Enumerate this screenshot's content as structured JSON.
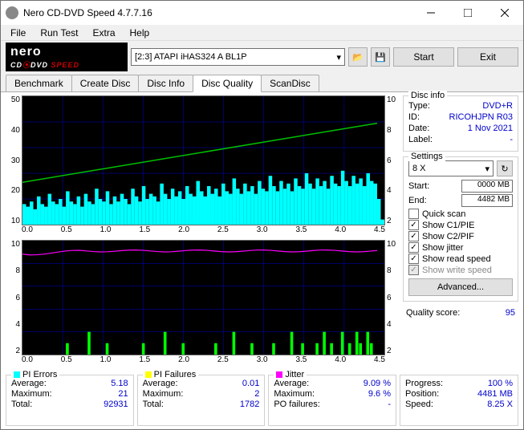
{
  "window": {
    "title": "Nero CD-DVD Speed 4.7.7.16"
  },
  "menu": {
    "file": "File",
    "run": "Run Test",
    "extra": "Extra",
    "help": "Help"
  },
  "toolbar": {
    "drive": "[2:3]   ATAPI iHAS324   A BL1P",
    "start": "Start",
    "exit": "Exit"
  },
  "tabs": {
    "benchmark": "Benchmark",
    "create": "Create Disc",
    "info": "Disc Info",
    "quality": "Disc Quality",
    "scan": "ScanDisc"
  },
  "disc_info": {
    "title": "Disc info",
    "type_lbl": "Type:",
    "type_val": "DVD+R",
    "id_lbl": "ID:",
    "id_val": "RICOHJPN R03",
    "date_lbl": "Date:",
    "date_val": "1 Nov 2021",
    "label_lbl": "Label:",
    "label_val": "-"
  },
  "settings": {
    "title": "Settings",
    "speed": "8 X",
    "start_lbl": "Start:",
    "start_val": "0000 MB",
    "end_lbl": "End:",
    "end_val": "4482 MB",
    "quick": "Quick scan",
    "c1": "Show C1/PIE",
    "c2": "Show C2/PIF",
    "jitter": "Show jitter",
    "read": "Show read speed",
    "write": "Show write speed",
    "advanced": "Advanced..."
  },
  "checks": {
    "quick": false,
    "c1": true,
    "c2": true,
    "jitter": true,
    "read": true,
    "write": true
  },
  "quality": {
    "lbl": "Quality score:",
    "val": "95"
  },
  "chart_top": {
    "yl": [
      "50",
      "40",
      "30",
      "20",
      "10"
    ],
    "yr": [
      "10",
      "8",
      "6",
      "4",
      "2"
    ],
    "x": [
      "0.0",
      "0.5",
      "1.0",
      "1.5",
      "2.0",
      "2.5",
      "3.0",
      "3.5",
      "4.0",
      "4.5"
    ],
    "xlim": [
      0,
      4.5
    ],
    "ylim_l": [
      0,
      50
    ],
    "ylim_r": [
      0,
      10
    ],
    "grid_color": "#0000cc",
    "pi_color": "#00ffff",
    "speed_color": "#00c000",
    "pi_values": [
      8,
      7,
      9,
      6,
      11,
      8,
      7,
      12,
      9,
      8,
      10,
      7,
      13,
      9,
      8,
      11,
      7,
      12,
      9,
      8,
      14,
      10,
      9,
      13,
      8,
      11,
      9,
      12,
      10,
      8,
      14,
      11,
      9,
      15,
      10,
      12,
      11,
      9,
      16,
      12,
      10,
      14,
      11,
      13,
      10,
      15,
      12,
      11,
      17,
      13,
      11,
      15,
      12,
      14,
      11,
      16,
      13,
      12,
      18,
      14,
      12,
      16,
      13,
      15,
      12,
      17,
      14,
      13,
      19,
      15,
      13,
      17,
      14,
      16,
      13,
      18,
      15,
      14,
      20,
      16,
      14,
      18,
      15,
      17,
      14,
      19,
      16,
      15,
      21,
      17,
      15,
      19,
      16,
      18,
      15,
      20,
      17,
      16,
      10,
      2
    ],
    "speed_line": [
      3.3,
      7.9
    ]
  },
  "chart_bottom": {
    "yl": [
      "10",
      "8",
      "6",
      "4",
      "2"
    ],
    "yr": [
      "10",
      "8",
      "6",
      "4",
      "2"
    ],
    "x": [
      "0.0",
      "0.5",
      "1.0",
      "1.5",
      "2.0",
      "2.5",
      "3.0",
      "3.5",
      "4.0",
      "4.5"
    ],
    "xlim": [
      0,
      4.5
    ],
    "ylim": [
      0,
      10
    ],
    "grid_color": "#0000cc",
    "pif_color": "#00ff00",
    "jitter_color": "#ff00ff",
    "pif_values": [
      0,
      0,
      0,
      0,
      0,
      0,
      0,
      0,
      0,
      0,
      0,
      0,
      1,
      0,
      0,
      0,
      0,
      0,
      2,
      0,
      0,
      0,
      0,
      1,
      0,
      0,
      0,
      0,
      0,
      0,
      0,
      0,
      0,
      1,
      0,
      0,
      0,
      0,
      0,
      2,
      0,
      0,
      0,
      0,
      1,
      0,
      0,
      0,
      0,
      0,
      0,
      0,
      0,
      1,
      0,
      0,
      0,
      0,
      2,
      0,
      0,
      0,
      0,
      1,
      0,
      0,
      0,
      0,
      0,
      1,
      0,
      0,
      0,
      0,
      2,
      0,
      0,
      1,
      0,
      0,
      0,
      1,
      0,
      2,
      0,
      1,
      0,
      0,
      2,
      0,
      1,
      0,
      2,
      1,
      0,
      2,
      1,
      0,
      0,
      0
    ],
    "jitter_line": 9.1
  },
  "stats": {
    "pie": {
      "title": "PI Errors",
      "color": "#00ffff",
      "avg_lbl": "Average:",
      "avg": "5.18",
      "max_lbl": "Maximum:",
      "max": "21",
      "tot_lbl": "Total:",
      "tot": "92931"
    },
    "pif": {
      "title": "PI Failures",
      "color": "#ffff00",
      "avg_lbl": "Average:",
      "avg": "0.01",
      "max_lbl": "Maximum:",
      "max": "2",
      "tot_lbl": "Total:",
      "tot": "1782"
    },
    "jitter": {
      "title": "Jitter",
      "color": "#ff00ff",
      "avg_lbl": "Average:",
      "avg": "9.09 %",
      "max_lbl": "Maximum:",
      "max": "9.6 %",
      "po_lbl": "PO failures:",
      "po": "-"
    },
    "progress": {
      "prog_lbl": "Progress:",
      "prog": "100 %",
      "pos_lbl": "Position:",
      "pos": "4481 MB",
      "spd_lbl": "Speed:",
      "spd": "8.25 X"
    }
  }
}
